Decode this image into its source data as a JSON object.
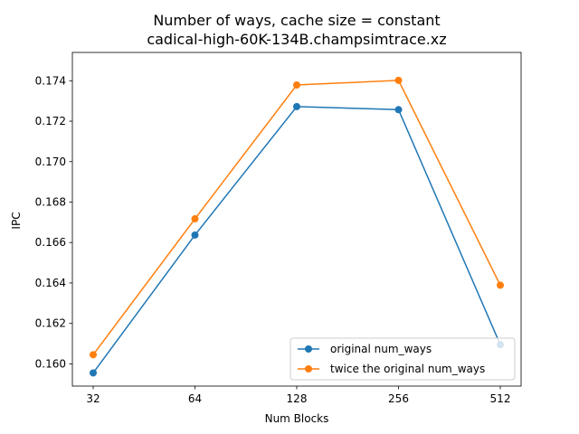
{
  "chart_data": {
    "type": "line",
    "title_line1": "Number of ways, cache size = constant",
    "title_line2": "cadical-high-60K-134B.champsimtrace.xz",
    "xlabel": "Num Blocks",
    "ylabel": "IPC",
    "categories": [
      "32",
      "64",
      "128",
      "256",
      "512"
    ],
    "ylim": [
      0.1589,
      0.1754
    ],
    "yticks": [
      0.16,
      0.162,
      0.164,
      0.166,
      0.168,
      0.17,
      0.172,
      0.174
    ],
    "ytick_labels": [
      "0.160",
      "0.162",
      "0.164",
      "0.166",
      "0.168",
      "0.170",
      "0.172",
      "0.174"
    ],
    "grid": false,
    "legend_position": "lower-right",
    "series": [
      {
        "name": "original num_ways",
        "color": "#1f77b4",
        "values": [
          0.15955,
          0.16637,
          0.17272,
          0.17257,
          0.16095
        ]
      },
      {
        "name": "twice the original num_ways",
        "color": "#ff7f0e",
        "values": [
          0.16045,
          0.16717,
          0.17379,
          0.17402,
          0.16389
        ]
      }
    ]
  }
}
